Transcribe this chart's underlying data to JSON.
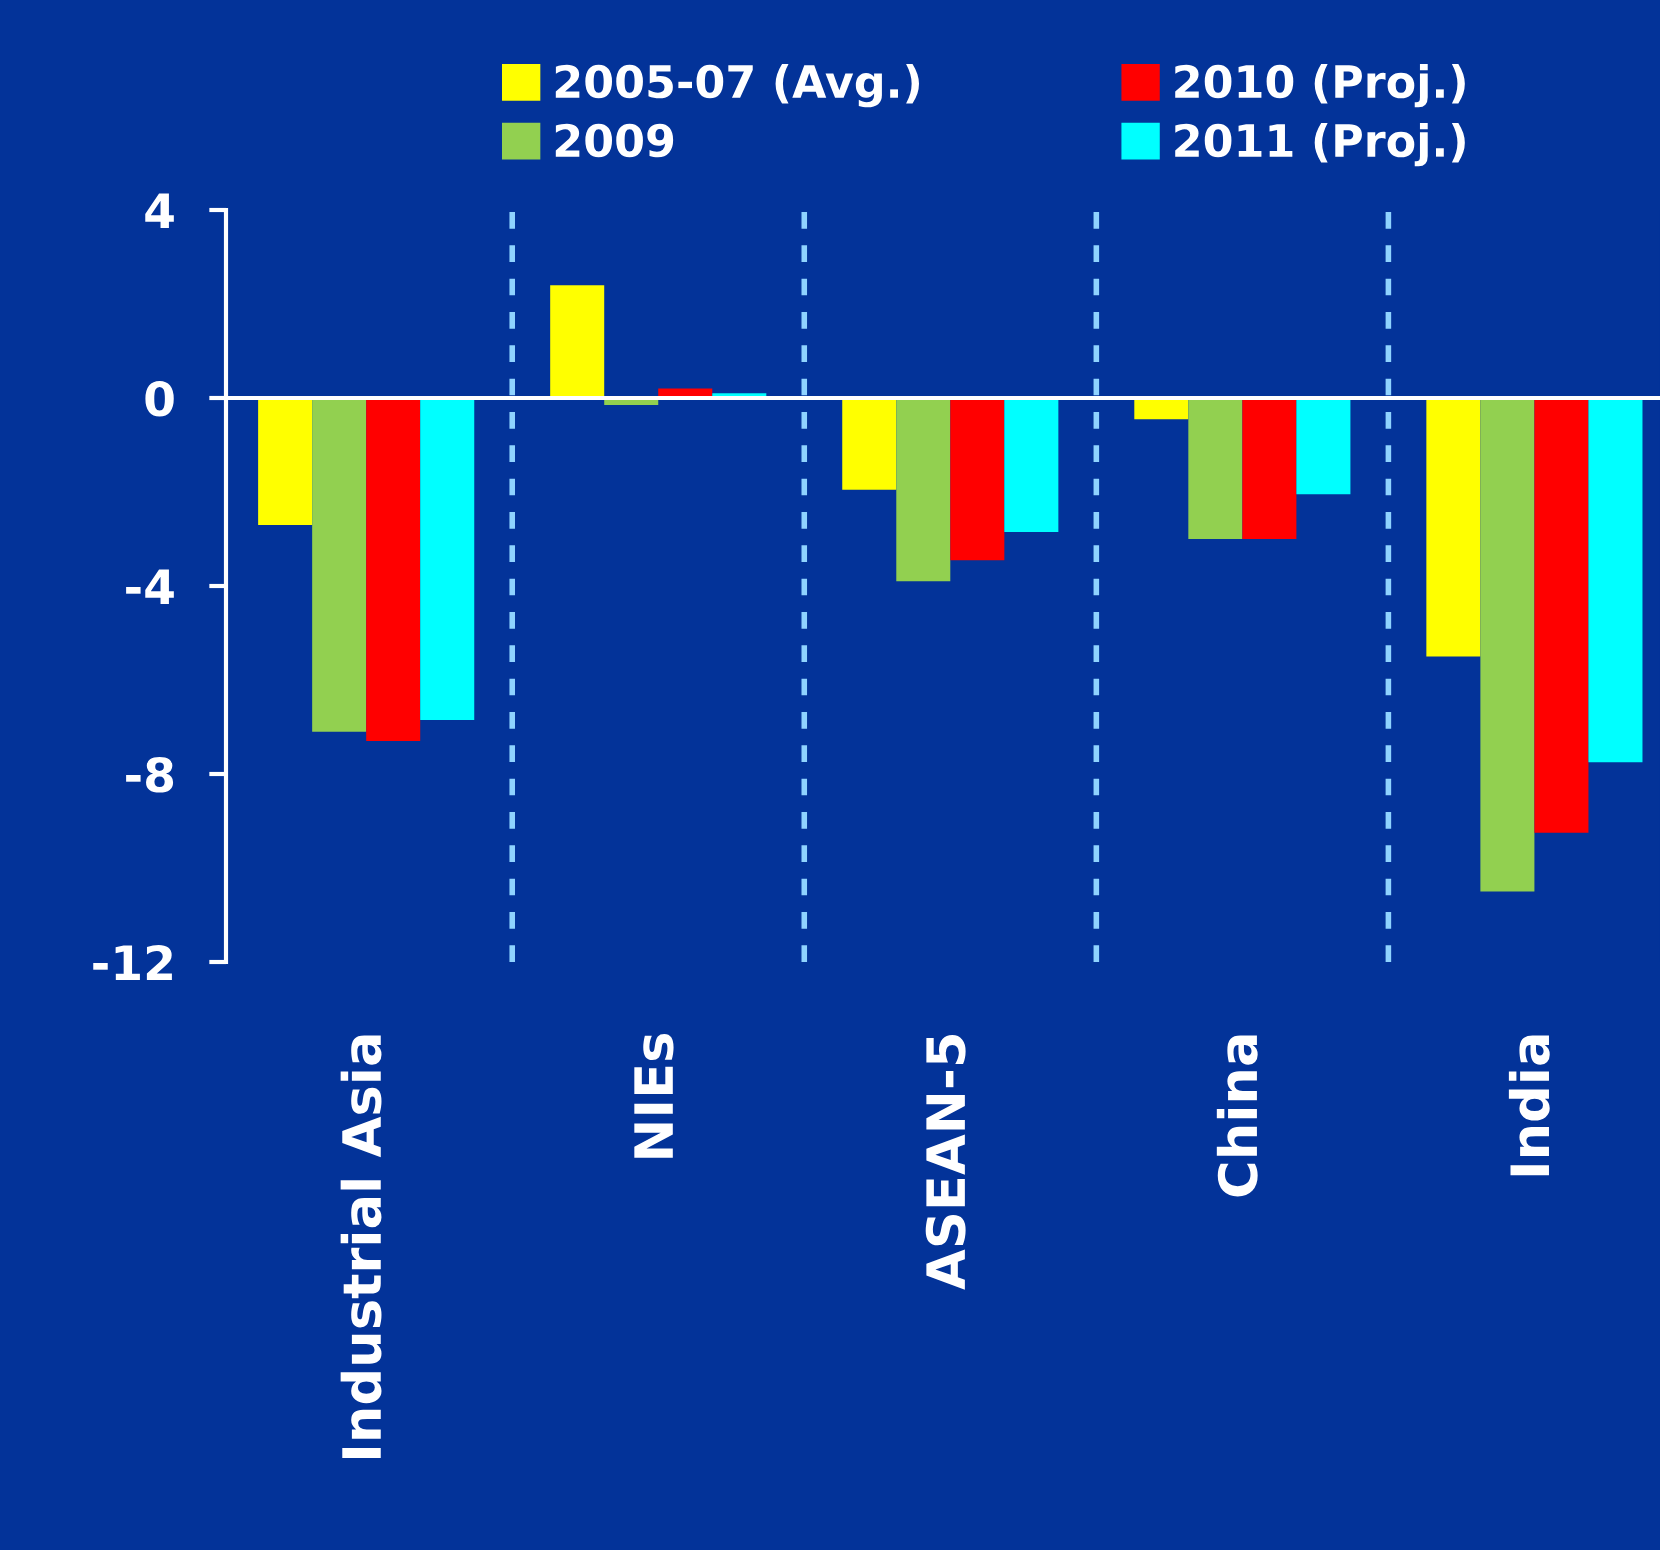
{
  "chart_data": {
    "type": "bar",
    "categories": [
      "Industrial Asia",
      "NIEs",
      "ASEAN-5",
      "China",
      "India"
    ],
    "series": [
      {
        "name": "2005-07 (Avg.)",
        "color": "#ffff00",
        "values": [
          -2.7,
          2.4,
          -1.95,
          -0.45,
          -5.5
        ]
      },
      {
        "name": "2009",
        "color": "#92d050",
        "values": [
          -7.1,
          -0.15,
          -3.9,
          -3.0,
          -10.5
        ]
      },
      {
        "name": "2010 (Proj.)",
        "color": "#ff0000",
        "values": [
          -7.3,
          0.2,
          -3.45,
          -3.0,
          -9.25
        ]
      },
      {
        "name": "2011 (Proj.)",
        "color": "#00ffff",
        "values": [
          -6.85,
          0.1,
          -2.85,
          -2.05,
          -7.75
        ]
      }
    ],
    "ylim": [
      -12,
      4
    ],
    "yticks": [
      -12,
      -8,
      -4,
      0,
      4
    ],
    "grid": "x",
    "legend": "top"
  }
}
